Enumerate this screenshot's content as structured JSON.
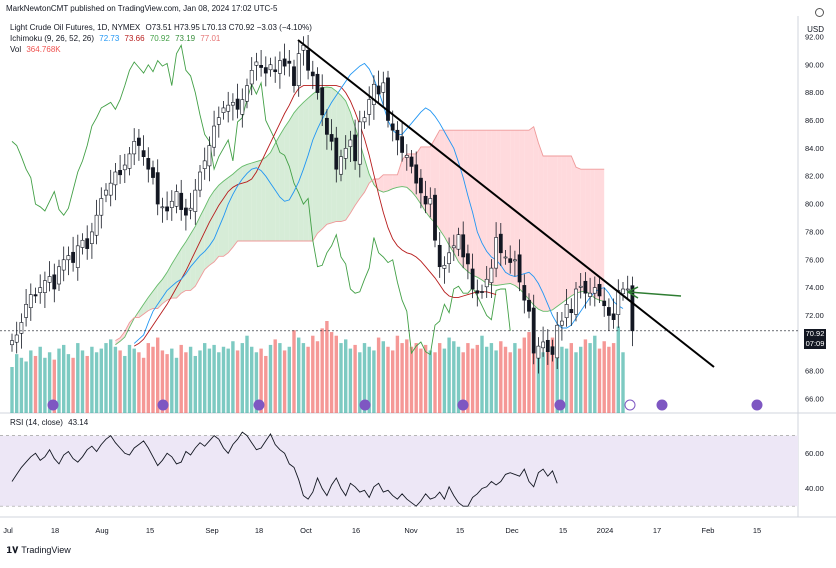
{
  "header": {
    "publish_line": "MarkNewtonCMT published on TradingView.com, Jan 08, 2024 17:02 UTC-5"
  },
  "legend": {
    "symbol": "Light Crude Oil Futures, 1D, NYMEX",
    "ohlc": "O73.51 H73.95 L70.13 C70.92 −3.03 (−4.10%)",
    "ichimoku_label": "Ichimoku (9, 26, 52, 26)",
    "ichimoku_values": [
      "72.73",
      "73.66",
      "70.92",
      "73.19",
      "77.01"
    ],
    "vol_label": "Vol",
    "vol_value": "364.768K"
  },
  "currency": "USD",
  "price_badge": "70.92",
  "countdown_badge": "07:09",
  "rsi": {
    "label": "RSI (14, close)",
    "value": "43.14"
  },
  "brand": "TradingView",
  "colors": {
    "up": "#26a69a",
    "down": "#ef5350",
    "conversion": "#2196f3",
    "base": "#b71c1c",
    "lagging": "#43a047",
    "span_a": "#66bb6a",
    "span_b": "#ef9a9a",
    "cloud_bull": "#c8e6c9",
    "cloud_bear": "#ffcdd2",
    "rsi_line": "#131722",
    "rsi_band": "#ede7f6",
    "trendline": "#000000",
    "arrow": "#2e7d32"
  },
  "chart_data": [
    {
      "type": "candlestick",
      "title": "Light Crude Oil Futures, 1D, NYMEX",
      "x_ticks": [
        "Jul",
        "18",
        "Aug",
        "15",
        "Sep",
        "18",
        "Oct",
        "16",
        "Nov",
        "15",
        "Dec",
        "15",
        "2024",
        "17",
        "Feb",
        "15"
      ],
      "y_ticks": [
        "92.00",
        "90.00",
        "88.00",
        "86.00",
        "84.00",
        "82.00",
        "80.00",
        "78.00",
        "76.00",
        "74.00",
        "72.00",
        "70.00",
        "68.00",
        "66.00"
      ],
      "ylim": [
        65,
        93.5
      ],
      "close_series": [
        70.2,
        70.6,
        71.5,
        72.8,
        73.5,
        73.4,
        74.0,
        74.5,
        74.8,
        73.9,
        75.5,
        76.0,
        76.3,
        75.8,
        77.0,
        77.4,
        76.8,
        78.0,
        79.2,
        80.4,
        81.0,
        81.5,
        82.3,
        82.1,
        82.8,
        83.6,
        84.5,
        84.2,
        83.4,
        82.5,
        81.9,
        80.0,
        79.8,
        79.5,
        80.2,
        80.9,
        79.6,
        79.2,
        79.7,
        81.0,
        82.3,
        83.1,
        84.2,
        85.6,
        86.2,
        86.9,
        87.1,
        87.3,
        86.8,
        87.5,
        88.5,
        89.6,
        90.2,
        89.8,
        89.4,
        90.0,
        89.5,
        90.3,
        89.9,
        90.1,
        88.5,
        90.8,
        91.4,
        89.6,
        89.2,
        88.0,
        86.4,
        85.0,
        84.5,
        82.5,
        83.4,
        84.0,
        84.6,
        83.1,
        85.9,
        86.2,
        87.5,
        88.6,
        87.9,
        88.7,
        86.0,
        85.3,
        84.6,
        83.7,
        83.5,
        82.7,
        81.5,
        80.8,
        80.0,
        80.4,
        77.4,
        75.5,
        75.6,
        76.5,
        77.0,
        77.8,
        76.2,
        75.7,
        73.9,
        73.6,
        73.7,
        74.6,
        75.4,
        77.6,
        76.5,
        76.2,
        75.8,
        76.0,
        74.4,
        73.1,
        72.3,
        69.3,
        69.8,
        70.1,
        69.4,
        69.2,
        71.3,
        71.6,
        72.8,
        72.2,
        73.9,
        74.1,
        73.6,
        73.6,
        74.0,
        73.4,
        72.7,
        72.0,
        71.7,
        73.8,
        73.9,
        73.9,
        70.9
      ],
      "tenkan": [
        70.0,
        70.3,
        70.6,
        71.5,
        72.3,
        72.8,
        73.3,
        73.8,
        74.1,
        74.4,
        74.6,
        75.0,
        75.5,
        75.9,
        76.3,
        76.6,
        77.0,
        77.5,
        78.3,
        79.1,
        80.0,
        80.7,
        81.3,
        81.8,
        82.2,
        82.5,
        82.6,
        82.4,
        82.0,
        81.5,
        81.0,
        80.5,
        80.2,
        80.3,
        80.9,
        81.6,
        82.5,
        83.5,
        84.6,
        85.4,
        86.1,
        86.7,
        87.3,
        87.8,
        88.3,
        88.8,
        89.3,
        89.6,
        89.9,
        90.1,
        89.7,
        89.0,
        88.1,
        87.1,
        86.0,
        85.3,
        85.0,
        85.0,
        85.4,
        85.8,
        86.2,
        86.6,
        86.9,
        86.7,
        86.3,
        85.8,
        85.2,
        84.6,
        84.0,
        83.0,
        81.9,
        80.6,
        79.4,
        78.0,
        77.2,
        76.6,
        76.2,
        76.0,
        75.6,
        75.1,
        74.9,
        74.8,
        74.9,
        75.0,
        75.1,
        74.8,
        74.3,
        73.6,
        72.8,
        72.0,
        71.4,
        71.1,
        71.1,
        71.3,
        71.8,
        72.3,
        72.8,
        73.3,
        73.7,
        73.9,
        74.0,
        73.6,
        73.0,
        72.7,
        72.5
      ],
      "kijun": [
        69.8,
        70.0,
        70.3,
        70.8,
        71.3,
        71.8,
        72.3,
        72.8,
        73.4,
        74.0,
        74.6,
        75.2,
        75.9,
        76.6,
        77.3,
        78.0,
        78.7,
        79.3,
        79.9,
        80.4,
        80.9,
        81.2,
        81.4,
        81.5,
        81.6,
        81.8,
        82.3,
        83.0,
        83.7,
        84.4,
        85.1,
        85.8,
        86.5,
        87.1,
        87.8,
        88.3,
        88.5,
        88.5,
        88.5,
        88.5,
        88.5,
        88.5,
        88.5,
        88.5,
        88.4,
        88.0,
        87.4,
        86.6,
        85.7,
        84.7,
        83.5,
        82.1,
        80.7,
        79.4,
        78.3,
        77.5,
        77.0,
        76.7,
        76.5,
        76.4,
        76.2,
        75.9,
        75.5,
        75.1,
        74.7,
        74.2,
        73.7,
        73.4,
        73.3,
        73.3,
        73.4,
        73.5,
        73.6,
        73.7,
        73.7,
        73.7,
        73.6,
        73.5
      ]
    },
    {
      "type": "bar",
      "title": "Volume",
      "values": [
        250,
        320,
        300,
        280,
        340,
        310,
        360,
        300,
        330,
        290,
        350,
        370,
        320,
        300,
        380,
        340,
        310,
        360,
        330,
        350,
        380,
        400,
        360,
        340,
        310,
        370,
        350,
        330,
        300,
        380,
        360,
        410,
        340,
        320,
        350,
        300,
        370,
        330,
        360,
        310,
        340,
        380,
        350,
        370,
        330,
        360,
        350,
        390,
        340,
        380,
        420,
        360,
        330,
        350,
        310,
        370,
        400,
        380,
        340,
        360,
        450,
        410,
        380,
        360,
        420,
        390,
        460,
        500,
        440,
        420,
        380,
        400,
        350,
        370,
        330,
        380,
        360,
        340,
        410,
        390,
        360,
        340,
        420,
        380,
        400,
        360,
        380,
        350,
        370,
        340,
        330,
        380,
        350,
        410,
        390,
        360,
        330,
        380,
        350,
        370,
        420,
        360,
        380,
        340,
        390,
        360,
        330,
        380,
        350,
        410,
        440,
        400,
        360,
        330,
        390,
        410,
        370,
        360,
        350,
        380,
        330,
        360,
        400,
        380,
        420,
        350,
        390,
        360,
        380,
        470,
        330
      ]
    },
    {
      "type": "line",
      "title": "RSI (14, close)",
      "y_ticks": [
        "60.00",
        "40.00"
      ],
      "ylim": [
        25,
        80
      ],
      "band": [
        30,
        70
      ],
      "values": [
        44,
        48,
        52,
        55,
        58,
        60,
        56,
        58,
        62,
        57,
        54,
        59,
        61,
        57,
        55,
        58,
        62,
        64,
        61,
        65,
        68,
        70,
        66,
        63,
        60,
        59,
        63,
        65,
        67,
        63,
        58,
        53,
        56,
        60,
        58,
        54,
        55,
        61,
        59,
        63,
        66,
        64,
        67,
        70,
        68,
        63,
        60,
        65,
        68,
        72,
        70,
        66,
        62,
        63,
        67,
        71,
        65,
        62,
        60,
        54,
        52,
        45,
        36,
        34,
        38,
        46,
        40,
        36,
        42,
        46,
        40,
        36,
        43,
        41,
        38,
        39,
        35,
        41,
        43,
        38,
        39,
        36,
        34,
        37,
        34,
        32,
        30,
        33,
        37,
        34,
        35,
        38,
        34,
        41,
        36,
        32,
        30,
        30,
        35,
        37,
        40,
        41,
        44,
        42,
        44,
        48,
        49,
        48,
        47,
        51,
        44,
        41,
        49,
        51,
        47,
        50,
        43
      ]
    }
  ]
}
